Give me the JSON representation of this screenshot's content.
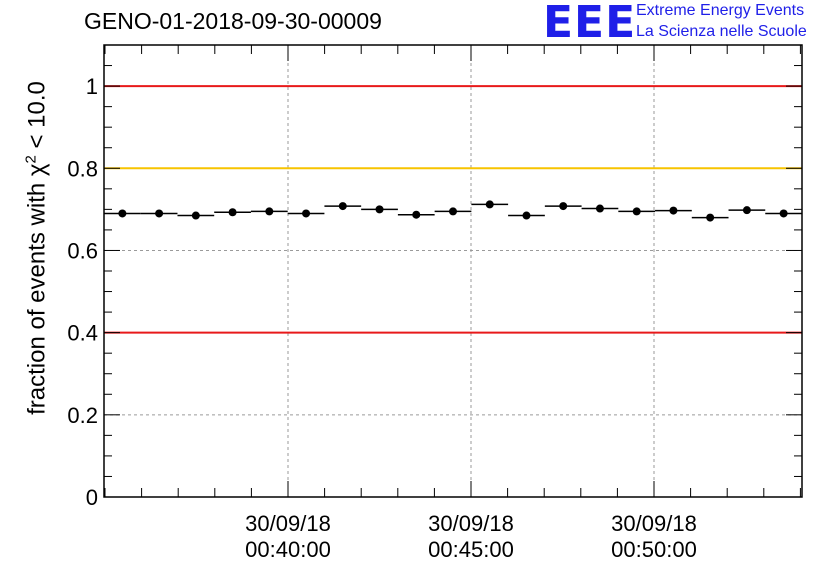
{
  "chart_data": {
    "type": "scatter",
    "title": "GENO-01-2018-09-30-00009",
    "ylabel_prefix": "fraction of events with ",
    "ylabel_chi": "χ",
    "ylabel_exp": "2",
    "ylabel_suffix": " < 10.0",
    "xlabel": "",
    "ylim": [
      0,
      1.1
    ],
    "y_ticks": [
      "0",
      "0.2",
      "0.4",
      "0.6",
      "0.8",
      "1"
    ],
    "x_ticks": [
      {
        "date": "30/09/18",
        "time": "00:40:00"
      },
      {
        "date": "30/09/18",
        "time": "00:45:00"
      },
      {
        "date": "30/09/18",
        "time": "00:50:00"
      }
    ],
    "reference_lines": [
      {
        "value": 1.0,
        "color": "#e8191a"
      },
      {
        "value": 0.8,
        "color": "#f7c400"
      },
      {
        "value": 0.4,
        "color": "#e8191a"
      }
    ],
    "series": [
      {
        "name": "fraction",
        "values": [
          0.69,
          0.69,
          0.685,
          0.693,
          0.695,
          0.69,
          0.708,
          0.7,
          0.687,
          0.695,
          0.712,
          0.685,
          0.708,
          0.702,
          0.695,
          0.697,
          0.68,
          0.698,
          0.69
        ]
      }
    ],
    "grid": true
  },
  "logo": {
    "mark": "EEE",
    "line1": "Extreme Energy Events",
    "line2": "La Scienza nelle Scuole",
    "color": "#1f1fe8"
  }
}
